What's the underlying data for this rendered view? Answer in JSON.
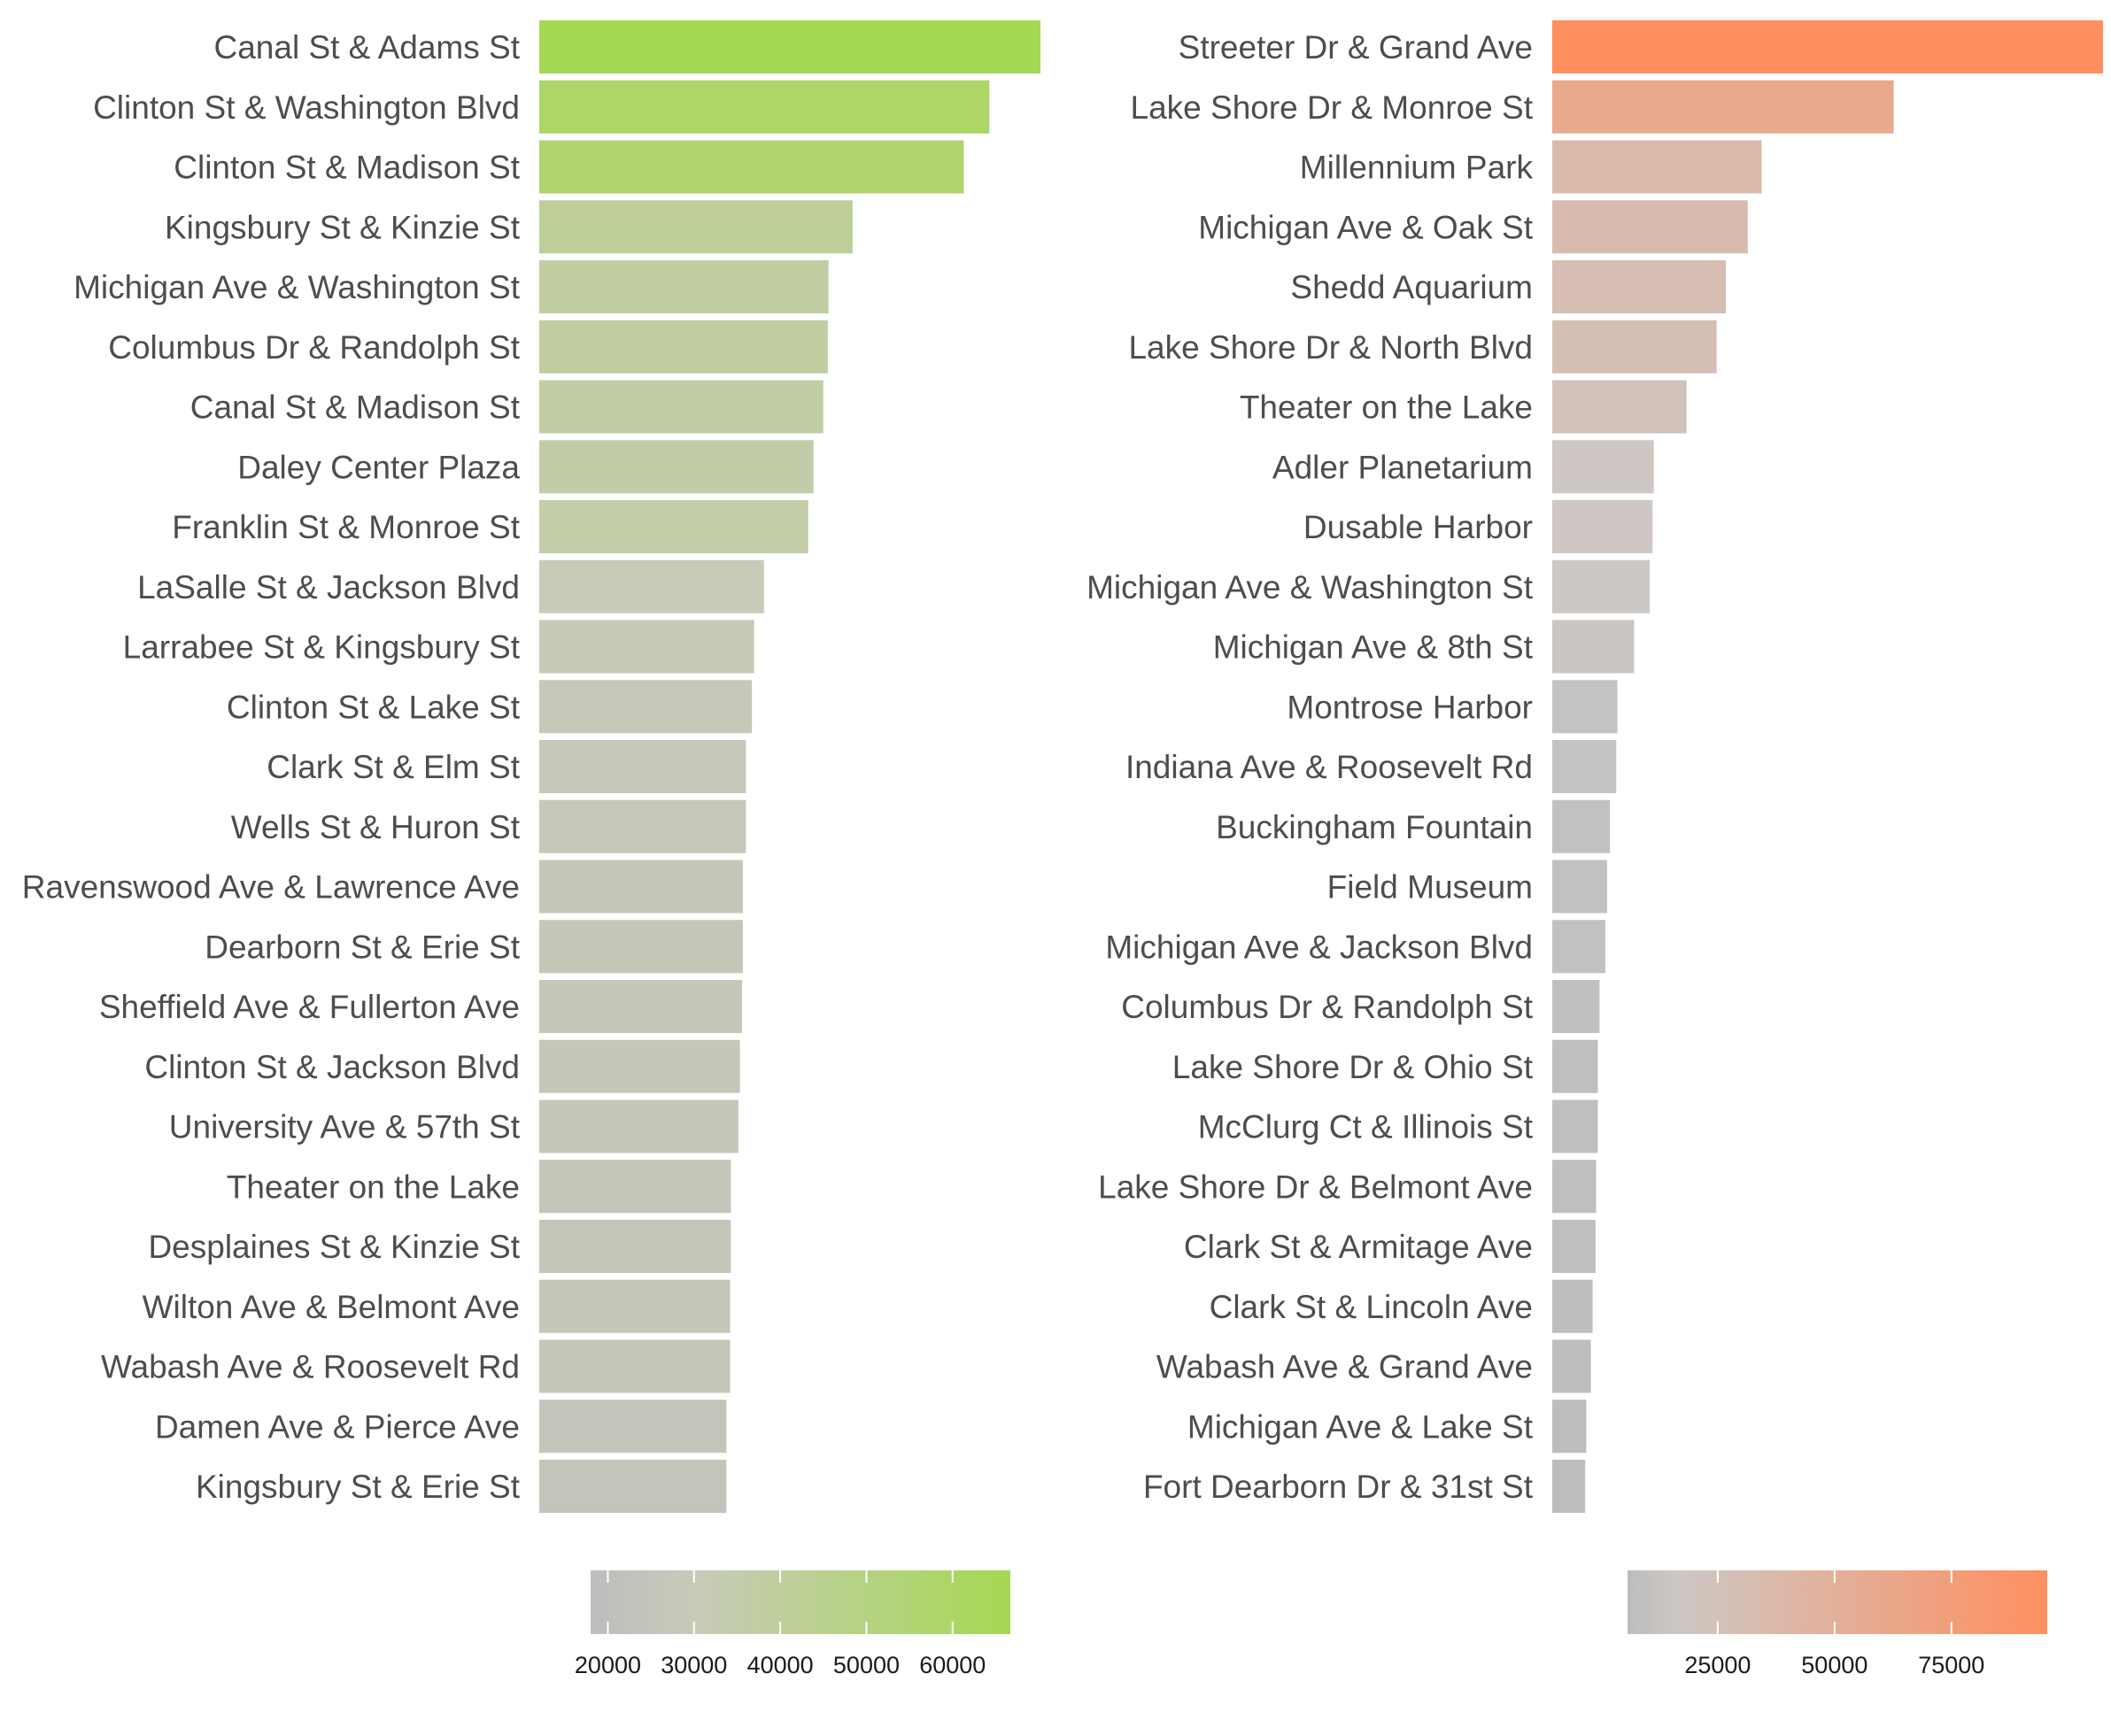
{
  "chart_data": [
    {
      "type": "bar",
      "orientation": "horizontal",
      "categories": [
        "Canal St & Adams St",
        "Clinton St & Washington Blvd",
        "Clinton St & Madison St",
        "Kingsbury St & Kinzie St",
        "Michigan Ave & Washington St",
        "Columbus Dr & Randolph St",
        "Canal St & Madison St",
        "Daley Center Plaza",
        "Franklin St & Monroe St",
        "LaSalle St & Jackson Blvd",
        "Larrabee St & Kingsbury St",
        "Clinton St & Lake St",
        "Clark St & Elm St",
        "Wells St & Huron St",
        "Ravenswood Ave & Lawrence Ave",
        "Dearborn St & Erie St",
        "Sheffield Ave & Fullerton Ave",
        "Clinton St & Jackson Blvd",
        "University Ave & 57th St",
        "Theater on the Lake",
        "Desplaines St & Kinzie St",
        "Wilton Ave & Belmont Ave",
        "Wabash Ave & Roosevelt Rd",
        "Damen Ave & Pierce Ave",
        "Kingsbury St & Erie St"
      ],
      "values": [
        66700,
        59900,
        56500,
        41700,
        38500,
        38400,
        37800,
        36500,
        35800,
        29900,
        28600,
        28300,
        27500,
        27500,
        27100,
        27100,
        27000,
        26700,
        26500,
        25500,
        25500,
        25400,
        25400,
        24900,
        24900
      ],
      "color_scale": {
        "ticks": [
          20000,
          30000,
          40000,
          50000,
          60000
        ],
        "tick_labels": [
          "20000",
          "30000",
          "40000",
          "50000",
          "60000"
        ],
        "min": 18000,
        "max": 66700,
        "colors": [
          "#bdbdbd",
          "#c8cbb8",
          "#a5d853"
        ],
        "stops": [
          0,
          0.25,
          1
        ]
      },
      "legend_placement": "bottom",
      "grid": false
    },
    {
      "type": "bar",
      "orientation": "horizontal",
      "categories": [
        "Streeter Dr & Grand Ave",
        "Lake Shore Dr & Monroe St",
        "Millennium Park",
        "Michigan Ave & Oak St",
        "Shedd Aquarium",
        "Lake Shore Dr & North Blvd",
        "Theater on the Lake",
        "Adler Planetarium",
        "Dusable Harbor",
        "Michigan Ave & Washington St",
        "Michigan Ave & 8th St",
        "Montrose Harbor",
        "Indiana Ave & Roosevelt Rd",
        "Buckingham Fountain",
        "Field Museum",
        "Michigan Ave & Jackson Blvd",
        "Columbus Dr & Randolph St",
        "Lake Shore Dr & Ohio St",
        "McClurg Ct & Illinois St",
        "Lake Shore Dr & Belmont Ave",
        "Clark St & Armitage Ave",
        "Clark St & Lincoln Ave",
        "Wabash Ave & Grand Ave",
        "Michigan Ave & Lake St",
        "Fort Dearborn Dr & 31st St"
      ],
      "values": [
        95500,
        59200,
        36300,
        33900,
        30100,
        28500,
        23300,
        17600,
        17400,
        16900,
        14200,
        11300,
        11100,
        10000,
        9500,
        9200,
        8200,
        7900,
        7900,
        7600,
        7500,
        7000,
        6700,
        5900,
        5700
      ],
      "color_scale": {
        "ticks": [
          25000,
          50000,
          75000
        ],
        "tick_labels": [
          "25000",
          "50000",
          "75000"
        ],
        "min": 5700,
        "max": 95500,
        "colors": [
          "#bdbdbd",
          "#cdc8c4",
          "#ff8f5f"
        ],
        "stops": [
          0,
          0.12,
          1
        ]
      },
      "legend_placement": "bottom",
      "grid": false
    }
  ]
}
